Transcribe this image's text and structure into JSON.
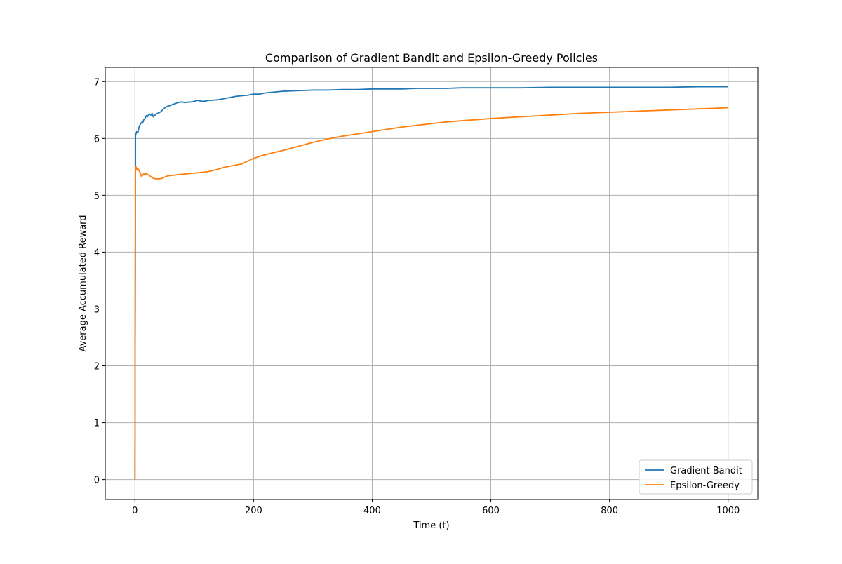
{
  "chart_data": {
    "type": "line",
    "title": "Comparison of Gradient Bandit and Epsilon-Greedy Policies",
    "xlabel": "Time (t)",
    "ylabel": "Average Accumulated Reward",
    "xlim": [
      -50,
      1050
    ],
    "ylim": [
      -0.35,
      7.25
    ],
    "xticks": [
      0,
      200,
      400,
      600,
      800,
      1000
    ],
    "yticks": [
      0,
      1,
      2,
      3,
      4,
      5,
      6,
      7
    ],
    "grid": true,
    "legend_position": "lower-right",
    "series": [
      {
        "name": "Gradient Bandit",
        "color": "#1f77b4",
        "points": [
          [
            0,
            0.0
          ],
          [
            1,
            6.05
          ],
          [
            3,
            6.12
          ],
          [
            5,
            6.1
          ],
          [
            7,
            6.2
          ],
          [
            9,
            6.25
          ],
          [
            11,
            6.28
          ],
          [
            13,
            6.27
          ],
          [
            15,
            6.33
          ],
          [
            17,
            6.35
          ],
          [
            19,
            6.4
          ],
          [
            21,
            6.38
          ],
          [
            23,
            6.42
          ],
          [
            25,
            6.43
          ],
          [
            27,
            6.41
          ],
          [
            29,
            6.44
          ],
          [
            31,
            6.38
          ],
          [
            33,
            6.4
          ],
          [
            36,
            6.43
          ],
          [
            40,
            6.45
          ],
          [
            44,
            6.47
          ],
          [
            48,
            6.52
          ],
          [
            52,
            6.55
          ],
          [
            56,
            6.57
          ],
          [
            60,
            6.58
          ],
          [
            64,
            6.6
          ],
          [
            68,
            6.61
          ],
          [
            72,
            6.63
          ],
          [
            76,
            6.64
          ],
          [
            80,
            6.64
          ],
          [
            85,
            6.63
          ],
          [
            90,
            6.64
          ],
          [
            95,
            6.64
          ],
          [
            100,
            6.65
          ],
          [
            105,
            6.67
          ],
          [
            110,
            6.66
          ],
          [
            115,
            6.65
          ],
          [
            120,
            6.66
          ],
          [
            125,
            6.67
          ],
          [
            130,
            6.67
          ],
          [
            140,
            6.68
          ],
          [
            150,
            6.7
          ],
          [
            160,
            6.72
          ],
          [
            170,
            6.74
          ],
          [
            180,
            6.75
          ],
          [
            190,
            6.76
          ],
          [
            200,
            6.78
          ],
          [
            210,
            6.78
          ],
          [
            220,
            6.8
          ],
          [
            230,
            6.81
          ],
          [
            240,
            6.82
          ],
          [
            250,
            6.83
          ],
          [
            275,
            6.84
          ],
          [
            300,
            6.85
          ],
          [
            325,
            6.85
          ],
          [
            350,
            6.86
          ],
          [
            375,
            6.86
          ],
          [
            400,
            6.87
          ],
          [
            425,
            6.87
          ],
          [
            450,
            6.87
          ],
          [
            475,
            6.88
          ],
          [
            500,
            6.88
          ],
          [
            525,
            6.88
          ],
          [
            550,
            6.89
          ],
          [
            575,
            6.89
          ],
          [
            600,
            6.89
          ],
          [
            650,
            6.89
          ],
          [
            700,
            6.9
          ],
          [
            750,
            6.9
          ],
          [
            800,
            6.9
          ],
          [
            850,
            6.9
          ],
          [
            900,
            6.9
          ],
          [
            950,
            6.91
          ],
          [
            1000,
            6.91
          ]
        ]
      },
      {
        "name": "Epsilon-Greedy",
        "color": "#ff7f0e",
        "points": [
          [
            0,
            0.0
          ],
          [
            1,
            5.45
          ],
          [
            2,
            5.5
          ],
          [
            3,
            5.45
          ],
          [
            5,
            5.47
          ],
          [
            7,
            5.43
          ],
          [
            9,
            5.4
          ],
          [
            11,
            5.33
          ],
          [
            13,
            5.35
          ],
          [
            15,
            5.38
          ],
          [
            17,
            5.36
          ],
          [
            19,
            5.38
          ],
          [
            21,
            5.37
          ],
          [
            23,
            5.36
          ],
          [
            25,
            5.34
          ],
          [
            27,
            5.33
          ],
          [
            29,
            5.31
          ],
          [
            31,
            5.3
          ],
          [
            34,
            5.29
          ],
          [
            38,
            5.29
          ],
          [
            42,
            5.29
          ],
          [
            46,
            5.3
          ],
          [
            50,
            5.32
          ],
          [
            55,
            5.34
          ],
          [
            60,
            5.35
          ],
          [
            65,
            5.35
          ],
          [
            70,
            5.36
          ],
          [
            80,
            5.37
          ],
          [
            90,
            5.38
          ],
          [
            100,
            5.39
          ],
          [
            110,
            5.4
          ],
          [
            120,
            5.41
          ],
          [
            130,
            5.43
          ],
          [
            140,
            5.46
          ],
          [
            150,
            5.49
          ],
          [
            160,
            5.51
          ],
          [
            170,
            5.53
          ],
          [
            180,
            5.55
          ],
          [
            190,
            5.6
          ],
          [
            200,
            5.65
          ],
          [
            215,
            5.7
          ],
          [
            230,
            5.74
          ],
          [
            250,
            5.79
          ],
          [
            275,
            5.86
          ],
          [
            300,
            5.93
          ],
          [
            325,
            5.99
          ],
          [
            350,
            6.04
          ],
          [
            375,
            6.08
          ],
          [
            400,
            6.12
          ],
          [
            425,
            6.16
          ],
          [
            450,
            6.2
          ],
          [
            475,
            6.23
          ],
          [
            500,
            6.26
          ],
          [
            525,
            6.29
          ],
          [
            550,
            6.31
          ],
          [
            575,
            6.33
          ],
          [
            600,
            6.35
          ],
          [
            650,
            6.38
          ],
          [
            700,
            6.41
          ],
          [
            750,
            6.44
          ],
          [
            800,
            6.46
          ],
          [
            850,
            6.48
          ],
          [
            900,
            6.5
          ],
          [
            950,
            6.52
          ],
          [
            1000,
            6.54
          ]
        ]
      }
    ]
  }
}
